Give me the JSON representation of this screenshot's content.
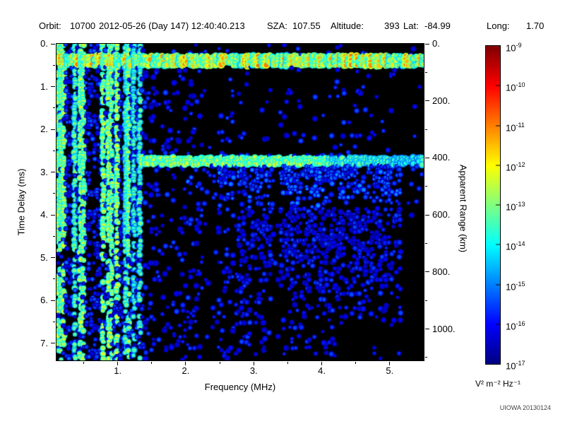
{
  "header": {
    "orbit_label": "Orbit:",
    "orbit_value": "10700",
    "datetime": "2012-05-26 (Day 147) 12:40:40.213",
    "sza_label": "SZA:",
    "sza_value": "107.55",
    "altitude_label": "Altitude:",
    "altitude_value": "393",
    "lat_label": "Lat:",
    "lat_value": "-84.99",
    "long_label": "Long:",
    "long_value": "1.70"
  },
  "chart_data": {
    "type": "heatmap",
    "title": "",
    "xlabel": "Frequency (MHz)",
    "ylabel_left": "Time Delay (ms)",
    "ylabel_right": "Apparent Range (km)",
    "x_range_mhz": [
      0.1,
      5.5
    ],
    "y_range_ms": [
      0.0,
      7.4
    ],
    "right_axis_km_per_ms": 150,
    "background": "#000000",
    "grid": false,
    "x_ticks": [
      {
        "value": 1,
        "label": "1."
      },
      {
        "value": 2,
        "label": "2."
      },
      {
        "value": 3,
        "label": "3."
      },
      {
        "value": 4,
        "label": "4."
      },
      {
        "value": 5,
        "label": "5."
      }
    ],
    "y_ticks_left": [
      {
        "value": 0,
        "label": "0."
      },
      {
        "value": 1,
        "label": "1."
      },
      {
        "value": 2,
        "label": "2."
      },
      {
        "value": 3,
        "label": "3."
      },
      {
        "value": 4,
        "label": "4."
      },
      {
        "value": 5,
        "label": "5."
      },
      {
        "value": 6,
        "label": "6."
      },
      {
        "value": 7,
        "label": "7."
      }
    ],
    "y_ticks_right": [
      {
        "value": 0,
        "label": "0."
      },
      {
        "value": 200,
        "label": "200."
      },
      {
        "value": 400,
        "label": "400."
      },
      {
        "value": 600,
        "label": "600."
      },
      {
        "value": 800,
        "label": "800."
      },
      {
        "value": 1000,
        "label": "1000."
      }
    ],
    "colorbar": {
      "colormap": "jet",
      "scale_exponents": [
        -17,
        -9
      ],
      "tick_exponents": [
        -9,
        -10,
        -11,
        -12,
        -13,
        -14,
        -15,
        -16,
        -17
      ],
      "unit": "V² m⁻² Hz⁻¹"
    },
    "features": [
      {
        "name": "transmitter-direct-signal-band",
        "freq_mhz": [
          0.1,
          5.5
        ],
        "delay_ms": [
          0.25,
          0.52
        ],
        "intensity_exp": [
          -13,
          -11
        ]
      },
      {
        "name": "plasma-oscillation-harmonic-stripes",
        "freq_mhz": [
          0.1,
          1.35
        ],
        "delay_ms": [
          0.0,
          7.4
        ],
        "intensity_exp": [
          -15,
          -12.5
        ]
      },
      {
        "name": "surface-reflection-trace",
        "freq_mhz": [
          1.3,
          5.5
        ],
        "delay_ms": [
          2.65,
          2.85
        ],
        "apparent_range_km": 400,
        "intensity_exp": [
          -14,
          -12.5
        ]
      },
      {
        "name": "diffuse-ionospheric-scatter",
        "freq_mhz": [
          1.4,
          5.2
        ],
        "delay_ms": [
          2.6,
          6.4
        ],
        "intensity_exp": [
          -17,
          -15
        ]
      },
      {
        "name": "weak-background-speckle",
        "freq_mhz": [
          0.1,
          5.5
        ],
        "delay_ms": [
          0.0,
          7.4
        ],
        "intensity_exp": [
          -17,
          -15.5
        ]
      },
      {
        "name": "attenuated-columns",
        "freq_mhz_centers": [
          2.35,
          3.32
        ],
        "note": "darker vertical gaps in the scatter field"
      }
    ]
  },
  "footer": {
    "credit": "UIOWA 20130124"
  }
}
